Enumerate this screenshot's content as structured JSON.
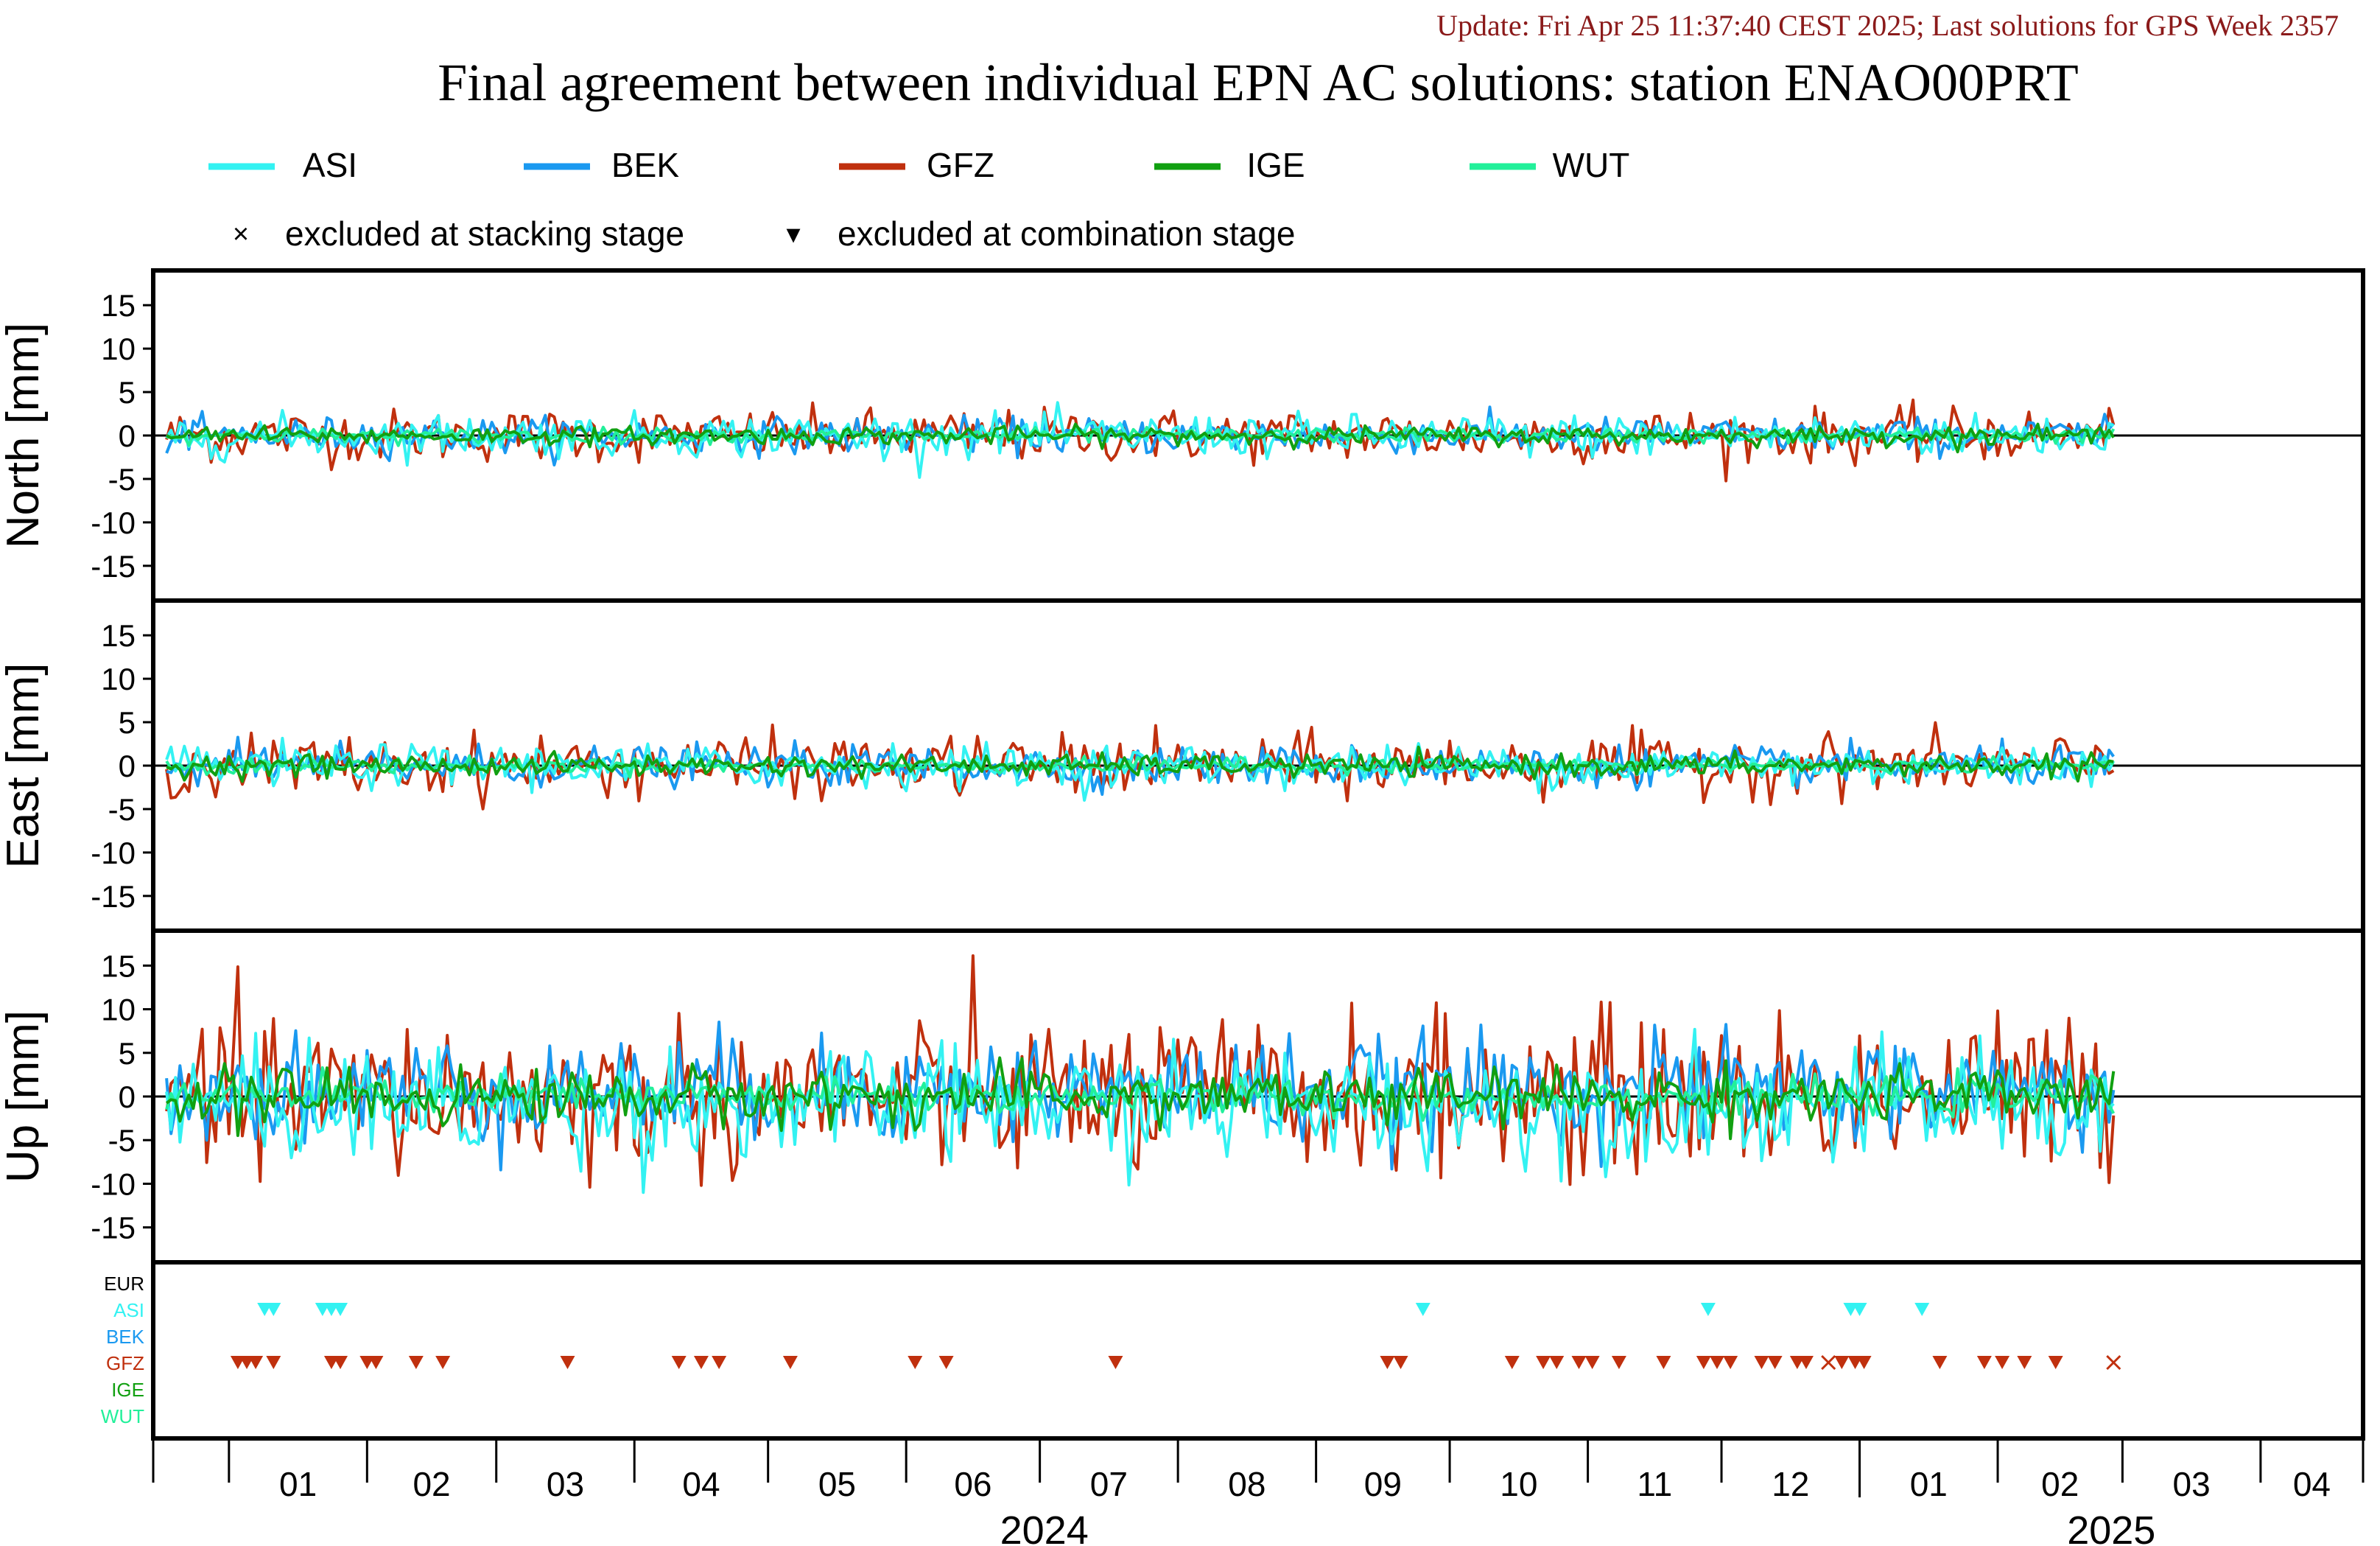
{
  "update_line": "Update: Fri Apr 25 11:37:40 CEST 2025; Last solutions for GPS Week 2357",
  "title": "Final agreement between individual EPN AC solutions: station ENAO00PRT",
  "legend": [
    {
      "name": "ASI",
      "color": "#33f2f2"
    },
    {
      "name": "BEK",
      "color": "#1a99f0"
    },
    {
      "name": "GFZ",
      "color": "#c0300e"
    },
    {
      "name": "IGE",
      "color": "#11a011"
    },
    {
      "name": "WUT",
      "color": "#22f09a"
    }
  ],
  "markers_legend": [
    {
      "symbol": "×",
      "label": "excluded at stacking stage"
    },
    {
      "symbol": "▾",
      "label": "excluded at combination stage"
    }
  ],
  "chart_data": {
    "type": "line",
    "x_range": [
      "2023-12-15",
      "2025-04-24"
    ],
    "x_month_labels": [
      "01",
      "02",
      "03",
      "04",
      "05",
      "06",
      "07",
      "08",
      "09",
      "10",
      "11",
      "12",
      "01",
      "02",
      "03",
      "04"
    ],
    "x_year_labels": [
      "2024",
      "2025"
    ],
    "panels": [
      {
        "ylabel": "North [mm]",
        "ylim": [
          -19,
          19
        ],
        "yticks": [
          "15",
          "10",
          "5",
          "0",
          "-5",
          "-10",
          "-15"
        ],
        "approx_series_spread": {
          "ASI": 1.2,
          "BEK": 1.0,
          "GFZ": 1.5,
          "IGE": 0.5,
          "WUT": 0.4
        }
      },
      {
        "ylabel": "East [mm]",
        "ylim": [
          -19,
          19
        ],
        "yticks": [
          "15",
          "10",
          "5",
          "0",
          "-5",
          "-10",
          "-15"
        ],
        "approx_series_spread": {
          "ASI": 1.2,
          "BEK": 1.1,
          "GFZ": 1.7,
          "IGE": 0.6,
          "WUT": 0.4
        }
      },
      {
        "ylabel": "Up [mm]",
        "ylim": [
          -19,
          19
        ],
        "yticks": [
          "15",
          "10",
          "5",
          "0",
          "-5",
          "-10",
          "-15"
        ],
        "approx_series_spread": {
          "ASI": 3.2,
          "BEK": 3.0,
          "GFZ": 4.5,
          "IGE": 1.6,
          "WUT": 1.0
        }
      }
    ],
    "exclusion_rows": [
      "EUR",
      "ASI",
      "BEK",
      "GFZ",
      "IGE",
      "WUT"
    ],
    "exclusions": [
      {
        "row": "ASI",
        "type": "combination",
        "dates": [
          "2024-01-09",
          "2024-01-11",
          "2024-01-22",
          "2024-01-24",
          "2024-01-26",
          "2024-09-25",
          "2024-11-28",
          "2024-12-30",
          "2025-01-01",
          "2025-01-15"
        ]
      },
      {
        "row": "GFZ",
        "type": "combination",
        "dates": [
          "2024-01-03",
          "2024-01-05",
          "2024-01-07",
          "2024-01-11",
          "2024-01-24",
          "2024-01-26",
          "2024-02-01",
          "2024-02-03",
          "2024-02-12",
          "2024-02-18",
          "2024-03-17",
          "2024-04-11",
          "2024-04-16",
          "2024-04-20",
          "2024-05-06",
          "2024-06-03",
          "2024-06-10",
          "2024-07-18",
          "2024-09-17",
          "2024-09-20",
          "2024-10-15",
          "2024-10-22",
          "2024-10-25",
          "2024-10-30",
          "2024-11-02",
          "2024-11-08",
          "2024-11-18",
          "2024-11-27",
          "2024-11-30",
          "2024-12-03",
          "2024-12-10",
          "2024-12-13",
          "2024-12-18",
          "2024-12-20",
          "2024-12-28",
          "2024-12-31",
          "2025-01-02",
          "2025-01-19",
          "2025-01-29",
          "2025-02-02",
          "2025-02-07",
          "2025-02-14"
        ]
      },
      {
        "row": "GFZ",
        "type": "stacking",
        "dates": [
          "2024-12-25",
          "2025-02-27"
        ]
      }
    ]
  }
}
